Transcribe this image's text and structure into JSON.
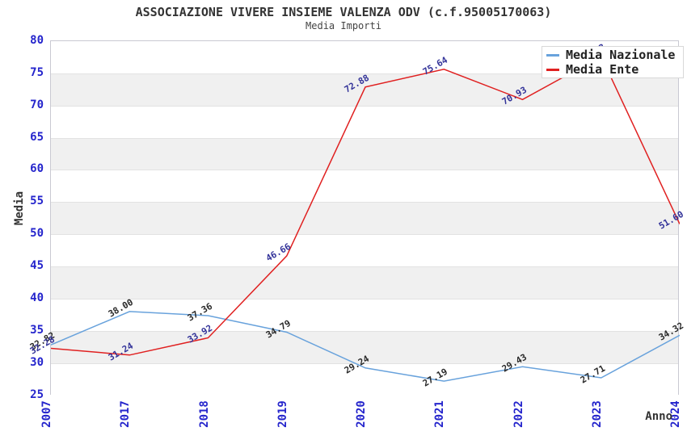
{
  "header": {
    "title": "ASSOCIAZIONE VIVERE INSIEME VALENZA ODV (c.f.95005170063)",
    "subtitle": "Media Importi"
  },
  "chart_data": {
    "type": "line",
    "title": "ASSOCIAZIONE VIVERE INSIEME VALENZA ODV (c.f.95005170063)",
    "subtitle": "Media Importi",
    "categories": [
      "2007",
      "2017",
      "2018",
      "2019",
      "2020",
      "2021",
      "2022",
      "2023",
      "2024"
    ],
    "series": [
      {
        "name": "Media Nazionale",
        "color": "#68a2dc",
        "label_color": "#2a2a2a",
        "values": [
          32.82,
          38.0,
          37.36,
          34.79,
          29.24,
          27.19,
          29.43,
          27.71,
          34.32
        ],
        "point_labels": [
          "32.82",
          "38.00",
          "37.36",
          "34.79",
          "29.24",
          "27.19",
          "29.43",
          "27.71",
          "34.32"
        ]
      },
      {
        "name": "Media Ente",
        "color": "#e02020",
        "label_color": "#333399",
        "values": [
          32.28,
          31.24,
          33.92,
          46.66,
          72.88,
          75.64,
          70.93,
          77.63,
          51.6
        ],
        "point_labels": [
          "32.28",
          "31.24",
          "33.92",
          "46.66",
          "72.88",
          "75.64",
          "70.93",
          "77.63",
          "51.60"
        ]
      }
    ],
    "xlabel": "Anno",
    "ylabel": "Media",
    "ylim": [
      25,
      80
    ],
    "ytick_step": 5,
    "yticks": [
      80,
      75,
      70,
      65,
      60,
      55,
      50,
      45,
      40,
      35,
      30,
      25
    ],
    "grid": "horizontal-alternating-bands",
    "legend_position": "top-right-inside",
    "colors": {
      "band_gray": "#f0f0f0",
      "band_white": "#ffffff",
      "gridline": "#e2e2e2",
      "plot_border": "#c9c9d2",
      "axis_tick_label": "#2525cc",
      "title_text": "#333333"
    }
  }
}
